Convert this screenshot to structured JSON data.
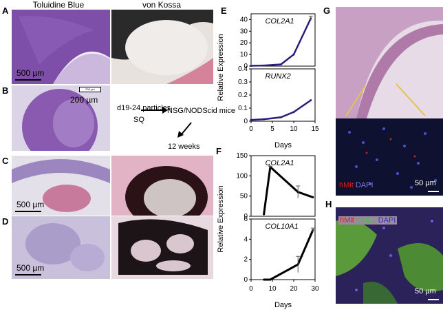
{
  "panels": {
    "A": {
      "label": "A",
      "left_title": "Toluidine Blue",
      "right_title": "von Kossa",
      "scale": "500 µm"
    },
    "B": {
      "label": "B",
      "scale": "200 µm",
      "inset_scale": "200 µm",
      "scheme": {
        "particles": "d19-24 particles",
        "route": "SQ",
        "mice": "NSG/NODScid mice",
        "duration": "12 weeks"
      }
    },
    "C": {
      "label": "C",
      "scale": "500 µm"
    },
    "D": {
      "label": "D",
      "scale": "500 µm"
    },
    "E": {
      "label": "E"
    },
    "F": {
      "label": "F"
    },
    "G": {
      "label": "G",
      "stain": "hMit",
      "stain2": "DAPI",
      "scale": "50 µm"
    },
    "H": {
      "label": "H",
      "stain": "hMit",
      "stain2": "COL1",
      "stain3": "DAPI",
      "scale": "50 µm"
    }
  },
  "colors": {
    "line_e": "#2e1a7a",
    "line_f": "#000000",
    "toluidine": "#7a4a9e",
    "vonkossa": "#1a1a1a",
    "fluor_red": "#d02020",
    "fluor_green": "#40c040",
    "fluor_blue": "#4040c0"
  },
  "chart_data": [
    {
      "panel": "E",
      "type": "line",
      "ylabel": "Relative Expression",
      "xlabel": "Days",
      "xlim": [
        0,
        15
      ],
      "xticks": [
        0,
        5,
        10,
        15
      ],
      "subplots": [
        {
          "name": "COL2A1",
          "ylim": [
            0,
            45
          ],
          "yticks": [
            0,
            10,
            20,
            30,
            40
          ],
          "x": [
            0,
            3,
            7,
            10,
            14
          ],
          "y": [
            0.3,
            0.5,
            1.5,
            10,
            41
          ],
          "err": [
            0,
            0,
            0,
            0,
            2
          ]
        },
        {
          "name": "RUNX2",
          "ylim": [
            0,
            0.4
          ],
          "yticks": [
            0,
            0.1,
            0.2,
            0.3,
            0.4
          ],
          "x": [
            0,
            3,
            7,
            10,
            14
          ],
          "y": [
            0.01,
            0.015,
            0.03,
            0.07,
            0.16
          ],
          "err": [
            0,
            0,
            0,
            0,
            0
          ]
        }
      ]
    },
    {
      "panel": "F",
      "type": "line",
      "ylabel": "Relative Expression",
      "xlabel": "Days",
      "xlim": [
        0,
        30
      ],
      "xticks": [
        0,
        10,
        20,
        30
      ],
      "subplots": [
        {
          "name": "COL2A1",
          "ylim": [
            0,
            150
          ],
          "yticks": [
            0,
            50,
            100,
            150
          ],
          "x": [
            6,
            9,
            22,
            29
          ],
          "y": [
            5,
            122,
            60,
            47
          ],
          "err": [
            0,
            2,
            15,
            0
          ]
        },
        {
          "name": "COL10A1",
          "ylim": [
            0,
            6
          ],
          "yticks": [
            0,
            2,
            4,
            6
          ],
          "x": [
            6,
            9,
            22,
            29
          ],
          "y": [
            0,
            0,
            1.5,
            4.9
          ],
          "err": [
            0,
            0,
            0.8,
            0.2
          ]
        }
      ]
    }
  ]
}
